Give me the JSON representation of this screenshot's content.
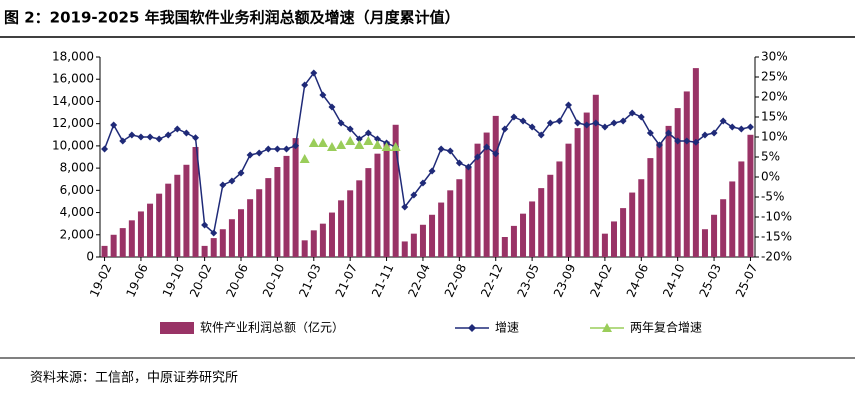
{
  "chart_data": {
    "type": "bar-line",
    "title": "图 2：2019-2025 年我国软件业务利润总额及增速（月度累计值）",
    "source": "资料来源：工信部，中原证券研究所",
    "categories": [
      "19-02",
      null,
      null,
      null,
      "19-06",
      null,
      null,
      null,
      "19-10",
      null,
      null,
      "20-02",
      null,
      null,
      null,
      "20-06",
      null,
      null,
      null,
      "20-10",
      null,
      null,
      null,
      "21-03",
      null,
      null,
      null,
      "21-07",
      null,
      null,
      null,
      "21-11",
      null,
      null,
      null,
      "22-04",
      null,
      null,
      null,
      "22-08",
      null,
      null,
      null,
      "22-12",
      null,
      null,
      null,
      "23-05",
      null,
      null,
      null,
      "23-09",
      null,
      null,
      null,
      "24-02",
      null,
      null,
      null,
      "24-06",
      null,
      null,
      null,
      "24-10",
      null,
      null,
      null,
      "25-03",
      null,
      null,
      null,
      "25-07"
    ],
    "series": [
      {
        "name": "软件产业利润总额（亿元）",
        "type": "bar",
        "axis": "y",
        "color": "#993366",
        "values": [
          1000,
          2000,
          2600,
          3300,
          4100,
          4800,
          5700,
          6600,
          7400,
          8300,
          9900,
          1000,
          1700,
          2500,
          3400,
          4300,
          5200,
          6100,
          7100,
          8100,
          9100,
          10700,
          1500,
          2400,
          3000,
          4000,
          5100,
          6000,
          6900,
          8000,
          9300,
          10400,
          11900,
          1400,
          2100,
          2900,
          3800,
          4900,
          6000,
          7000,
          8100,
          10200,
          11200,
          12700,
          1800,
          2800,
          3900,
          5000,
          6200,
          7400,
          8600,
          10200,
          11600,
          13000,
          14600,
          2100,
          3200,
          4400,
          5800,
          7000,
          8900,
          10300,
          11800,
          13400,
          14900,
          17000,
          2500,
          3800,
          5200,
          6800,
          8600,
          11000
        ]
      },
      {
        "name": "增速",
        "type": "line",
        "axis": "y2",
        "color": "#1f2a78",
        "values": [
          7,
          13,
          9,
          10.5,
          10,
          10,
          9.5,
          10.5,
          12,
          11,
          9.8,
          -12,
          -14,
          -2,
          -1,
          1,
          5.5,
          6,
          7,
          7,
          7,
          7.8,
          23,
          26,
          20.5,
          17.5,
          13.5,
          12,
          9.5,
          11,
          9.5,
          8.5,
          7.5,
          -7.5,
          -4.5,
          -1.5,
          1.5,
          7,
          6.5,
          3.5,
          2.5,
          5,
          7.5,
          5.8,
          12,
          15,
          14,
          12.5,
          10.5,
          13.5,
          14,
          18,
          13.5,
          13,
          13.5,
          12.5,
          13.5,
          14,
          16,
          15,
          11,
          8,
          11,
          9,
          9,
          8.7,
          10.5,
          11,
          14,
          12.5,
          12,
          12.5
        ]
      },
      {
        "name": "两年复合增速",
        "type": "triangle",
        "axis": "y2",
        "color": "#9acd5a",
        "values": [
          null,
          null,
          null,
          null,
          null,
          null,
          null,
          null,
          null,
          null,
          null,
          null,
          null,
          null,
          null,
          null,
          null,
          null,
          null,
          null,
          null,
          null,
          4.5,
          8.5,
          8.5,
          7.5,
          8,
          9,
          8,
          9,
          8,
          7.5,
          7.5,
          null,
          null,
          null,
          null,
          null,
          null,
          null,
          null,
          null,
          null,
          null,
          null,
          null,
          null,
          null,
          null,
          null,
          null,
          null,
          null,
          null,
          null,
          null,
          null,
          null,
          null,
          null,
          null,
          null,
          null,
          null,
          null,
          null,
          null,
          null,
          null,
          null,
          null,
          null
        ]
      }
    ],
    "ylim": [
      0,
      18000
    ],
    "yticks": [
      0,
      {
        "value": 2000,
        "label": "2,000"
      },
      {
        "value": 4000,
        "label": "4,000"
      },
      {
        "value": 6000,
        "label": "6,000"
      },
      {
        "value": 8000,
        "label": "8,000"
      },
      {
        "value": 10000,
        "label": "10,000"
      },
      {
        "value": 12000,
        "label": "12,000"
      },
      {
        "value": 14000,
        "label": "14,000"
      },
      {
        "value": 16000,
        "label": "16,000"
      },
      {
        "value": 18000,
        "label": "18,000"
      }
    ],
    "y2lim": [
      -20,
      30
    ],
    "y2ticks": [
      {
        "value": -20,
        "label": "-20%"
      },
      {
        "value": -15,
        "label": "-15%"
      },
      {
        "value": -10,
        "label": "-10%"
      },
      {
        "value": -5,
        "label": "-5%"
      },
      {
        "value": 0,
        "label": "0%"
      },
      {
        "value": 5,
        "label": "5%"
      },
      {
        "value": 10,
        "label": "10%"
      },
      {
        "value": 15,
        "label": "15%"
      },
      {
        "value": 20,
        "label": "20%"
      },
      {
        "value": 25,
        "label": "25%"
      },
      {
        "value": 30,
        "label": "30%"
      }
    ]
  }
}
